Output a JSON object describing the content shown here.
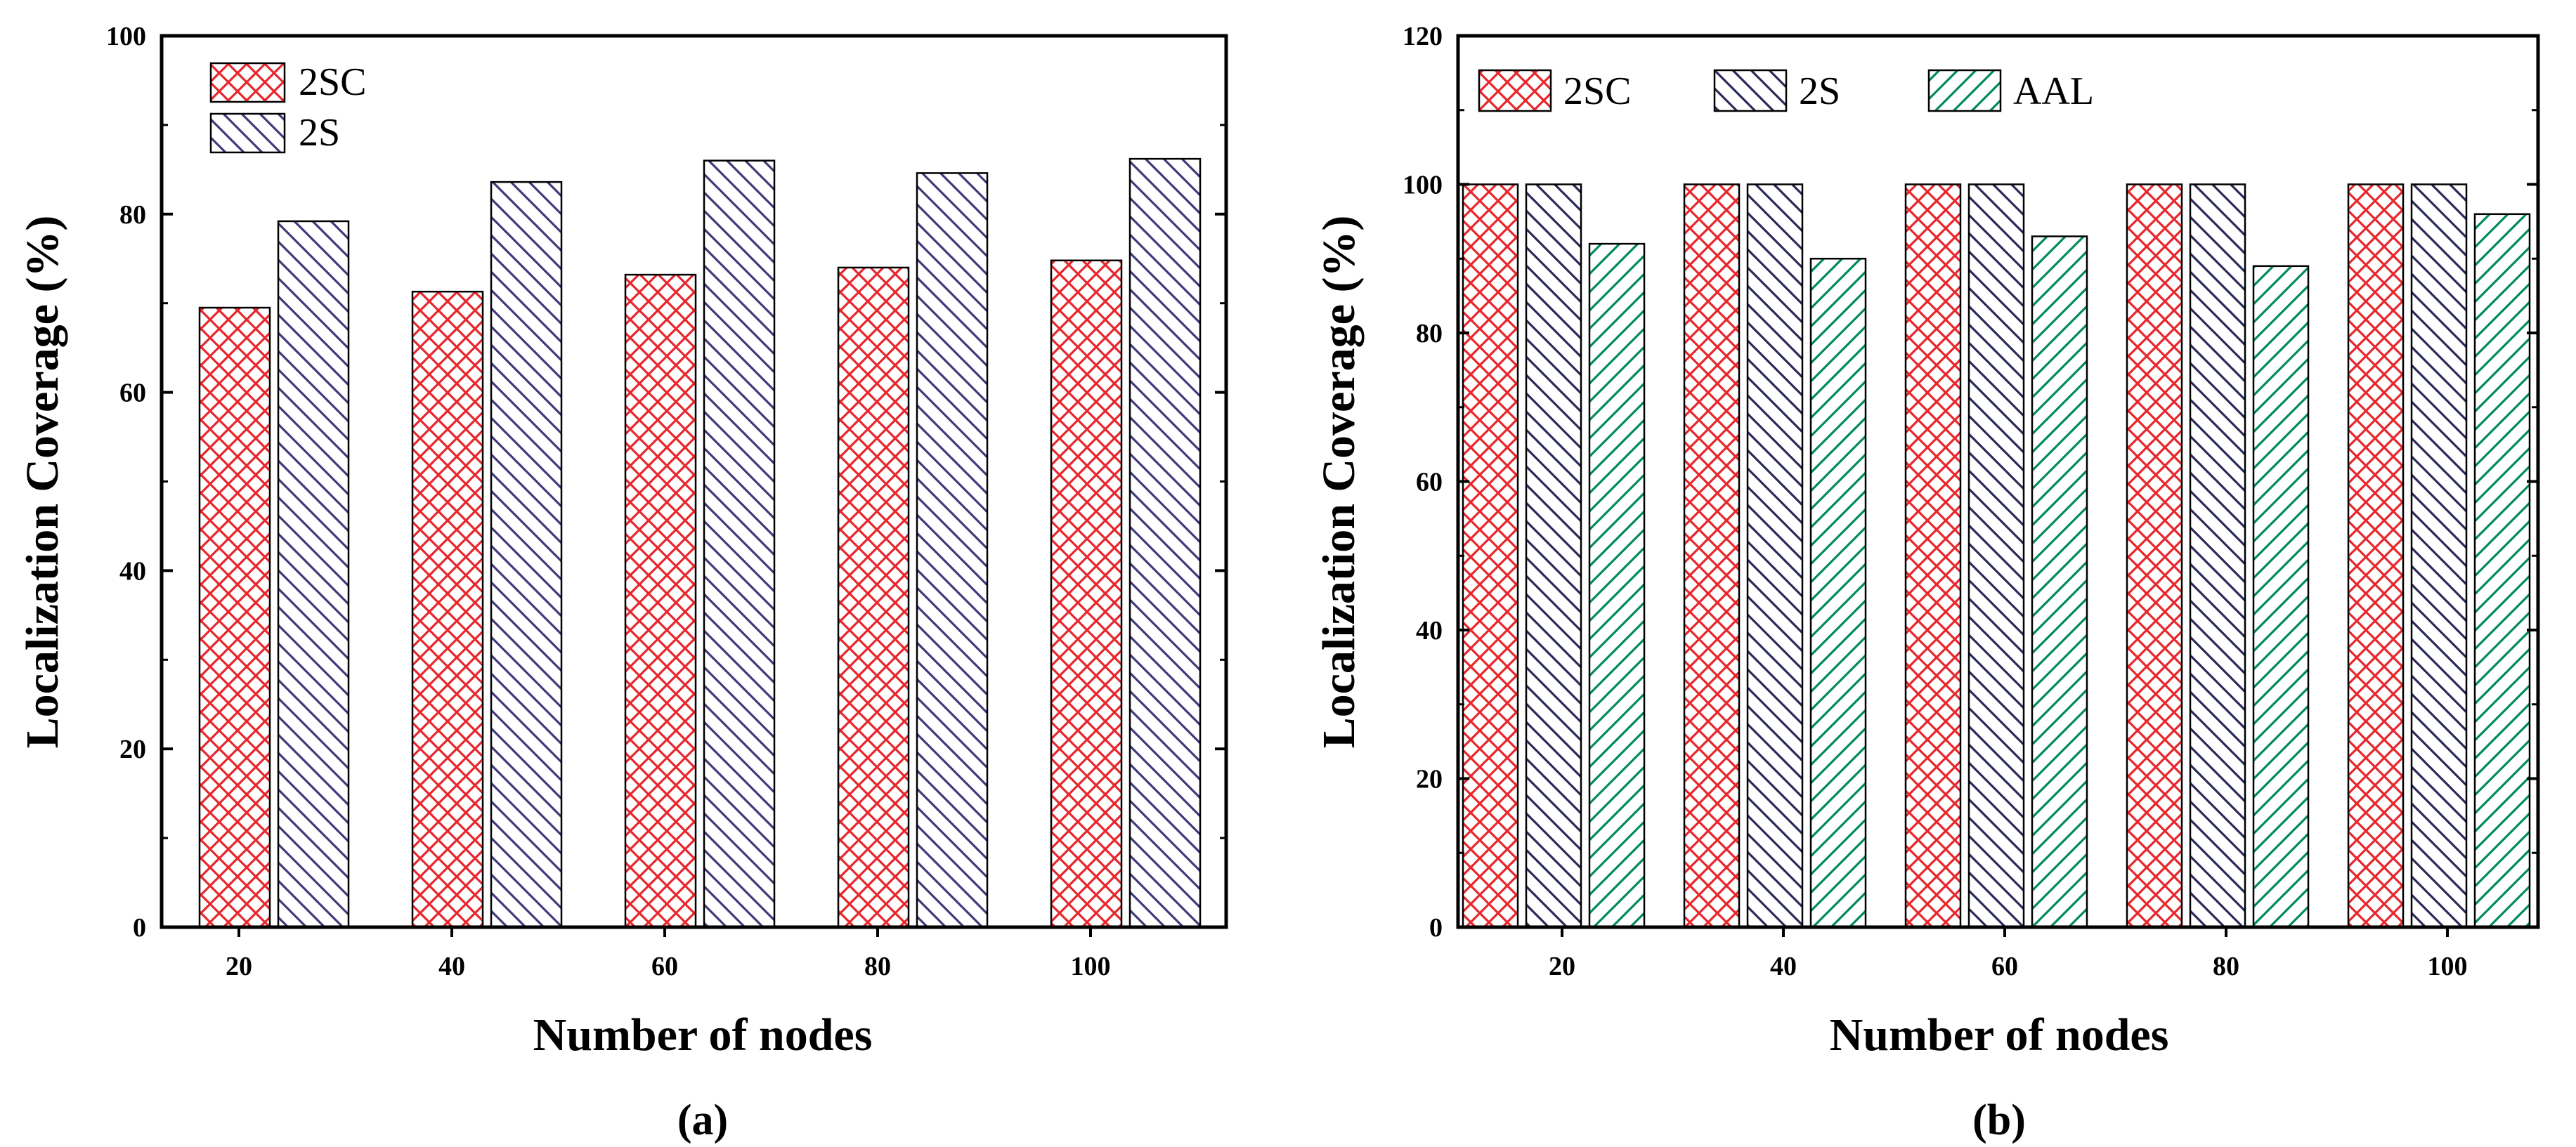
{
  "chart_data": [
    {
      "id": "a",
      "type": "bar",
      "caption": "(a)",
      "title": "",
      "xlabel": "Number of nodes",
      "ylabel": "Localization Coverage (%)",
      "categories": [
        "20",
        "40",
        "60",
        "80",
        "100"
      ],
      "ylim": [
        0,
        100
      ],
      "yticks": [
        0,
        20,
        40,
        60,
        80,
        100
      ],
      "grid": false,
      "legend": "top-left",
      "series": [
        {
          "name": "2SC",
          "values": [
            69.5,
            71.3,
            73.2,
            74.0,
            74.8
          ],
          "color": "#e8262c",
          "pattern": "crosshatch"
        },
        {
          "name": "2S",
          "values": [
            79.2,
            83.6,
            86.0,
            84.6,
            86.2
          ],
          "color": "#403a7a",
          "pattern": "diagonal-back"
        }
      ]
    },
    {
      "id": "b",
      "type": "bar",
      "caption": "(b)",
      "title": "",
      "xlabel": "Number of nodes",
      "ylabel": "Localization Coverage (%)",
      "categories": [
        "20",
        "40",
        "60",
        "80",
        "100"
      ],
      "ylim": [
        0,
        120
      ],
      "yticks": [
        0,
        20,
        40,
        60,
        80,
        100,
        120
      ],
      "grid": false,
      "legend": "top",
      "series": [
        {
          "name": "2SC",
          "values": [
            100,
            100,
            100,
            100,
            100
          ],
          "color": "#e8262c",
          "pattern": "crosshatch"
        },
        {
          "name": "2S",
          "values": [
            100,
            100,
            100,
            100,
            100
          ],
          "color": "#2a2a5a",
          "pattern": "diagonal-back"
        },
        {
          "name": "AAL",
          "values": [
            92,
            90,
            93,
            89,
            96
          ],
          "color": "#008a5e",
          "pattern": "diagonal-forward"
        }
      ]
    }
  ]
}
